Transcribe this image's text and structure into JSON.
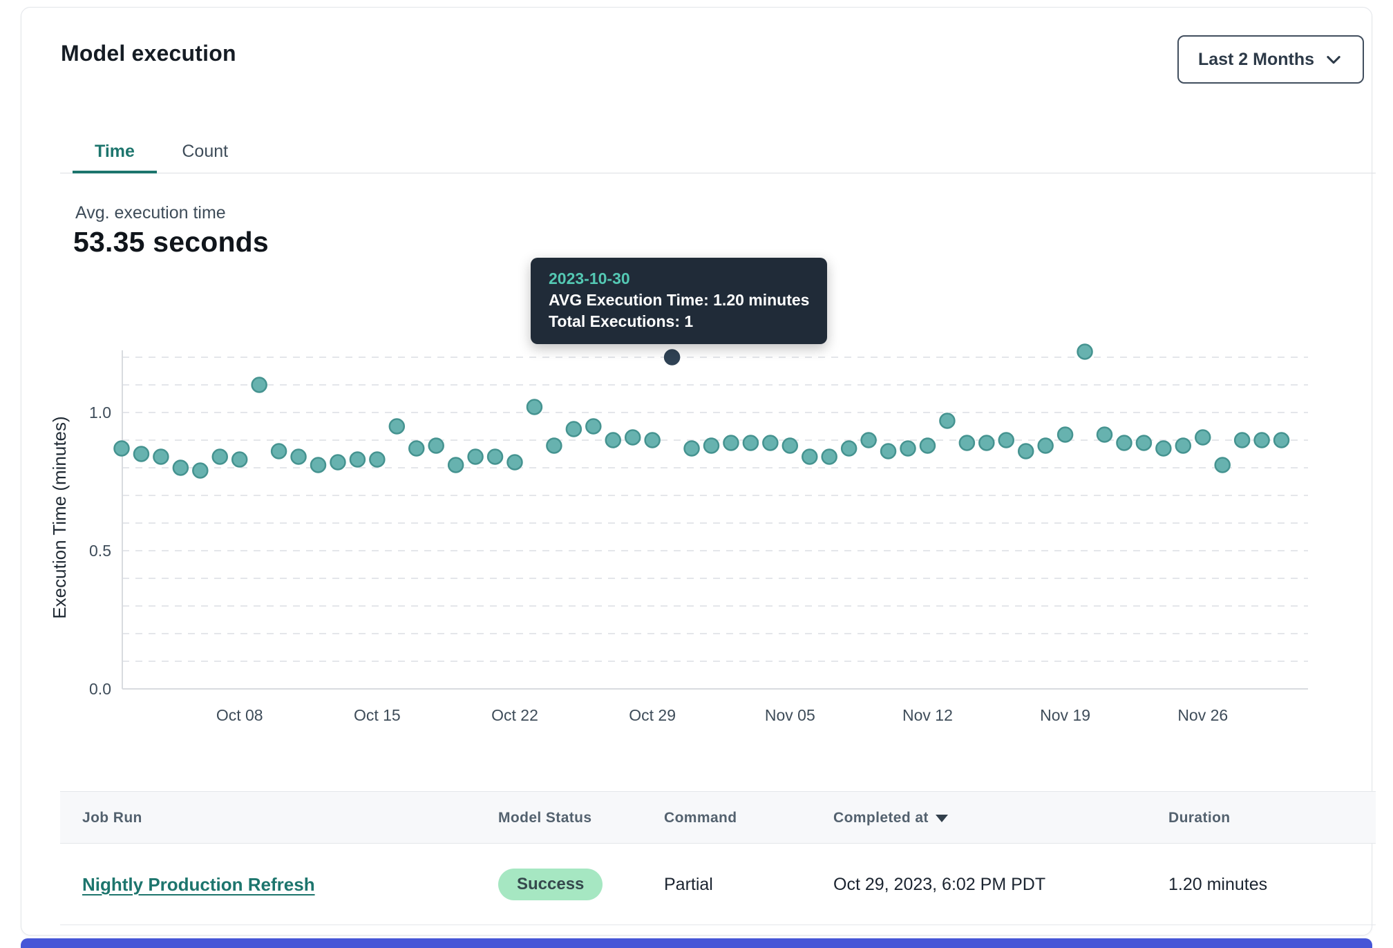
{
  "page": {
    "title": "Model execution"
  },
  "range_selector": {
    "value": "Last 2 Months"
  },
  "tabs": {
    "time": "Time",
    "count": "Count"
  },
  "summary": {
    "label": "Avg. execution time",
    "value": "53.35 seconds"
  },
  "tooltip": {
    "date": "2023-10-30",
    "avg_line": "AVG Execution Time: 1.20 minutes",
    "total_line": "Total Executions: 1"
  },
  "chart_data": {
    "type": "scatter",
    "title": "",
    "xlabel": "",
    "ylabel": "Execution Time (minutes)",
    "ylim": [
      0,
      1.26
    ],
    "y_ticks": [
      0.0,
      0.5,
      1.0
    ],
    "grid": "horizontal dashed lines every 0.1 minutes",
    "legend_position": "none",
    "x_tick_labels": [
      "Oct 08",
      "Oct 15",
      "Oct 22",
      "Oct 29",
      "Nov 05",
      "Nov 12",
      "Nov 19",
      "Nov 26"
    ],
    "x_tick_indices": [
      6,
      13,
      20,
      27,
      34,
      41,
      48,
      55
    ],
    "point_color": "#67b2af",
    "point_stroke": "#459390",
    "highlight_color": "#2f4254",
    "highlight": {
      "index": 28,
      "date": "2023-10-30",
      "value": 1.2,
      "total_executions": 1
    },
    "series": [
      {
        "name": "AVG Execution Time (minutes)",
        "x": [
          "2023-10-02",
          "2023-10-03",
          "2023-10-04",
          "2023-10-05",
          "2023-10-06",
          "2023-10-07",
          "2023-10-08",
          "2023-10-09",
          "2023-10-10",
          "2023-10-11",
          "2023-10-12",
          "2023-10-13",
          "2023-10-14",
          "2023-10-15",
          "2023-10-16",
          "2023-10-17",
          "2023-10-18",
          "2023-10-19",
          "2023-10-20",
          "2023-10-21",
          "2023-10-22",
          "2023-10-23",
          "2023-10-24",
          "2023-10-25",
          "2023-10-26",
          "2023-10-27",
          "2023-10-28",
          "2023-10-29",
          "2023-10-30",
          "2023-10-31",
          "2023-11-01",
          "2023-11-02",
          "2023-11-03",
          "2023-11-04",
          "2023-11-05",
          "2023-11-06",
          "2023-11-07",
          "2023-11-08",
          "2023-11-09",
          "2023-11-10",
          "2023-11-11",
          "2023-11-12",
          "2023-11-13",
          "2023-11-14",
          "2023-11-15",
          "2023-11-16",
          "2023-11-17",
          "2023-11-18",
          "2023-11-19",
          "2023-11-20",
          "2023-11-21",
          "2023-11-22",
          "2023-11-23",
          "2023-11-24",
          "2023-11-25",
          "2023-11-26",
          "2023-11-27",
          "2023-11-28",
          "2023-11-29",
          "2023-11-30"
        ],
        "values": [
          0.87,
          0.85,
          0.84,
          0.8,
          0.79,
          0.84,
          0.83,
          1.1,
          0.86,
          0.84,
          0.81,
          0.82,
          0.83,
          0.83,
          0.95,
          0.87,
          0.88,
          0.81,
          0.84,
          0.84,
          0.82,
          1.02,
          0.88,
          0.94,
          0.95,
          0.9,
          0.91,
          0.9,
          1.2,
          0.87,
          0.88,
          0.89,
          0.89,
          0.89,
          0.88,
          0.84,
          0.84,
          0.87,
          0.9,
          0.86,
          0.87,
          0.88,
          0.97,
          0.89,
          0.89,
          0.9,
          0.86,
          0.88,
          0.92,
          1.22,
          0.92,
          0.89,
          0.89,
          0.87,
          0.88,
          0.91,
          0.81,
          0.9,
          0.9,
          0.9
        ]
      }
    ]
  },
  "table": {
    "columns": [
      "Job Run",
      "Model Status",
      "Command",
      "Completed at",
      "Duration"
    ],
    "sort_column": "Completed at",
    "rows": [
      {
        "job_run": "Nightly Production Refresh",
        "model_status": "Success",
        "command": "Partial",
        "completed_at": "Oct 29, 2023, 6:02 PM PDT",
        "duration": "1.20 minutes"
      }
    ]
  }
}
